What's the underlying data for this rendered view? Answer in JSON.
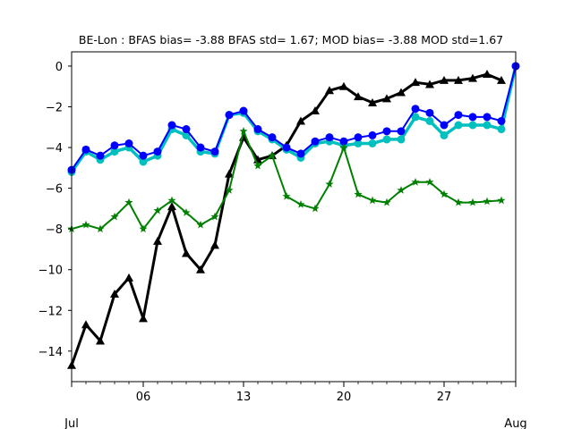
{
  "chart_data": {
    "type": "line",
    "title": "BE-Lon   : BFAS bias= -3.88 BFAS std= 1.67; MOD bias= -3.88 MOD std=1.67",
    "xlabel": "",
    "ylabel": "",
    "x_range": [
      "2018-07-01",
      "2018-08-01"
    ],
    "ylim": [
      -15.5,
      0.7
    ],
    "y_ticks": [
      0,
      -2,
      -4,
      -6,
      -8,
      -10,
      -12,
      -14
    ],
    "x_ticks": [
      {
        "date": "2018-07-06",
        "label": "06"
      },
      {
        "date": "2018-07-13",
        "label": "13"
      },
      {
        "date": "2018-07-20",
        "label": "20"
      },
      {
        "date": "2018-07-27",
        "label": "27"
      }
    ],
    "x_secondary_labels": [
      {
        "date": "2018-07-01",
        "label": "Jul"
      },
      {
        "date": "2018-08-01",
        "label": "Aug"
      }
    ],
    "grid": false,
    "legend": "none",
    "x": [
      "2018-07-01",
      "2018-07-02",
      "2018-07-03",
      "2018-07-04",
      "2018-07-05",
      "2018-07-06",
      "2018-07-07",
      "2018-07-08",
      "2018-07-09",
      "2018-07-10",
      "2018-07-11",
      "2018-07-12",
      "2018-07-13",
      "2018-07-14",
      "2018-07-15",
      "2018-07-16",
      "2018-07-17",
      "2018-07-18",
      "2018-07-19",
      "2018-07-20",
      "2018-07-21",
      "2018-07-22",
      "2018-07-23",
      "2018-07-24",
      "2018-07-25",
      "2018-07-26",
      "2018-07-27",
      "2018-07-28",
      "2018-07-29",
      "2018-07-30",
      "2018-07-31",
      "2018-08-01"
    ],
    "series": [
      {
        "color": "#000000",
        "marker": "triangle",
        "line_width": 3,
        "values": [
          -14.7,
          -12.7,
          -13.5,
          -11.2,
          -10.4,
          -12.4,
          -8.6,
          -6.9,
          -9.2,
          -10.0,
          -8.8,
          -5.3,
          -3.5,
          -4.6,
          -4.4,
          -3.9,
          -2.7,
          -2.2,
          -1.2,
          -1.0,
          -1.5,
          -1.8,
          -1.6,
          -1.3,
          -0.8,
          -0.9,
          -0.7,
          -0.7,
          -0.6,
          -0.4,
          -0.7,
          null
        ]
      },
      {
        "color": "#00bfbf",
        "marker": "circle",
        "line_width": 3.5,
        "values": [
          -5.2,
          -4.2,
          -4.6,
          -4.2,
          -4.0,
          -4.7,
          -4.4,
          -3.1,
          -3.4,
          -4.2,
          -4.3,
          -2.4,
          -2.3,
          -3.2,
          -3.6,
          -4.1,
          -4.5,
          -3.8,
          -3.7,
          -3.9,
          -3.8,
          -3.8,
          -3.6,
          -3.6,
          -2.5,
          -2.7,
          -3.4,
          -2.9,
          -2.9,
          -2.9,
          -3.1,
          0.0
        ]
      },
      {
        "color": "#0000ff",
        "marker": "circle",
        "line_width": 2,
        "values": [
          -5.1,
          -4.1,
          -4.4,
          -3.9,
          -3.8,
          -4.4,
          -4.2,
          -2.9,
          -3.1,
          -4.0,
          -4.2,
          -2.4,
          -2.2,
          -3.1,
          -3.5,
          -4.0,
          -4.3,
          -3.7,
          -3.5,
          -3.7,
          -3.5,
          -3.4,
          -3.2,
          -3.2,
          -2.1,
          -2.3,
          -2.9,
          -2.4,
          -2.5,
          -2.5,
          -2.7,
          0.0
        ]
      },
      {
        "color": "#008000",
        "marker": "star",
        "line_width": 2,
        "values": [
          -8.0,
          -7.8,
          -8.0,
          -7.4,
          -6.7,
          -8.0,
          -7.1,
          -6.6,
          -7.2,
          -7.8,
          -7.4,
          -6.1,
          -3.2,
          -4.9,
          -4.4,
          -6.4,
          -6.8,
          -7.0,
          -5.8,
          -4.0,
          -6.3,
          -6.6,
          -6.7,
          -6.1,
          -5.7,
          -5.7,
          -6.3,
          -6.7,
          -6.7,
          -6.65,
          -6.6,
          null
        ]
      }
    ]
  }
}
